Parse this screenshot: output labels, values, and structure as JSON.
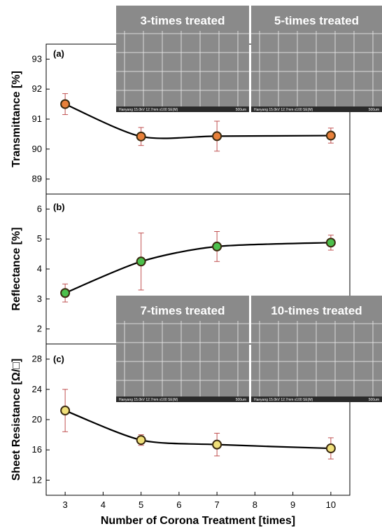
{
  "chart_data": [
    {
      "type": "line",
      "panel_label": "(a)",
      "ylabel": "Transmittance [%]",
      "ylim": [
        88.5,
        93.5
      ],
      "yticks": [
        89,
        90,
        91,
        92,
        93
      ],
      "x": [
        3,
        5,
        7,
        10
      ],
      "series": [
        {
          "values": [
            91.5,
            90.42,
            90.43,
            90.45
          ],
          "error": [
            0.35,
            0.3,
            0.5,
            0.25
          ],
          "marker_color": "#e8803a"
        }
      ]
    },
    {
      "type": "line",
      "panel_label": "(b)",
      "ylabel": "Reflectance [%]",
      "ylim": [
        1.5,
        6.5
      ],
      "yticks": [
        2,
        3,
        4,
        5,
        6
      ],
      "x": [
        3,
        5,
        7,
        10
      ],
      "series": [
        {
          "values": [
            3.2,
            4.25,
            4.75,
            4.88
          ],
          "error": [
            0.3,
            0.95,
            0.5,
            0.25
          ],
          "marker_color": "#4cc04c"
        }
      ]
    },
    {
      "type": "line",
      "panel_label": "(c)",
      "ylabel": "Sheet Resistance [Ω/□]",
      "ylim": [
        10,
        30
      ],
      "yticks": [
        12,
        16,
        20,
        24,
        28
      ],
      "x": [
        3,
        5,
        7,
        10
      ],
      "xlabel": "Number of Corona Treatment [times]",
      "xticks": [
        3,
        4,
        5,
        6,
        7,
        8,
        9,
        10
      ],
      "xlim": [
        2.5,
        10.5
      ],
      "series": [
        {
          "values": [
            21.2,
            17.3,
            16.7,
            16.2
          ],
          "error": [
            2.8,
            0.7,
            1.5,
            1.4
          ],
          "marker_color": "#f0e07a"
        }
      ]
    }
  ],
  "sem_images": [
    {
      "label": "3-times treated",
      "caption_left": "Hanyang 15.0kV 12.7mm x100 SE(M)",
      "caption_right": "500um"
    },
    {
      "label": "5-times treated",
      "caption_left": "Hanyang 15.0kV 12.7mm x100 SE(M)",
      "caption_right": "500um"
    },
    {
      "label": "7-times treated",
      "caption_left": "Hanyang 15.0kV 12.7mm x100 SE(M)",
      "caption_right": "500um"
    },
    {
      "label": "10-times treated",
      "caption_left": "Hanyang 15.0kV 12.7mm x100 SE(M)",
      "caption_right": "500um"
    }
  ],
  "colors": {
    "sem_background": "#8a8a8a",
    "sem_grid": "#e8e8e8",
    "error_bar": "#c05050",
    "curve": "#000000"
  }
}
